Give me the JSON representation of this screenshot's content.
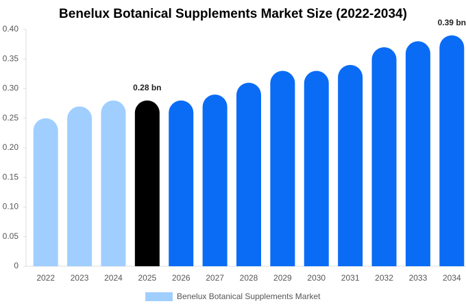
{
  "chart_data": {
    "type": "bar",
    "title": "Benelux Botanical Supplements Market Size (2022-2034)",
    "categories": [
      "2022",
      "2023",
      "2024",
      "2025",
      "2026",
      "2027",
      "2028",
      "2029",
      "2030",
      "2031",
      "2032",
      "2033",
      "2034"
    ],
    "series": [
      {
        "name": "Benelux Botanical Supplements Market",
        "color": "#a0cfff",
        "colors": [
          "#a0cfff",
          "#a0cfff",
          "#a0cfff",
          "#000000",
          "#0a6cf5",
          "#0a6cf5",
          "#0a6cf5",
          "#0a6cf5",
          "#0a6cf5",
          "#0a6cf5",
          "#0a6cf5",
          "#0a6cf5",
          "#0a6cf5"
        ],
        "values": [
          0.25,
          0.27,
          0.28,
          0.28,
          0.28,
          0.29,
          0.31,
          0.33,
          0.33,
          0.34,
          0.37,
          0.38,
          0.39
        ],
        "value_labels": [
          null,
          null,
          null,
          "0.28 bn",
          null,
          null,
          null,
          null,
          null,
          null,
          null,
          null,
          "0.39 bn"
        ]
      }
    ],
    "ylim": [
      0,
      0.4
    ],
    "yticks": [
      0,
      0.05,
      {
        "value": 0.1,
        "label": "0.10"
      },
      0.15,
      {
        "value": 0.2,
        "label": "0.20"
      },
      0.25,
      {
        "value": 0.3,
        "label": "0.30"
      },
      0.35,
      {
        "value": 0.4,
        "label": "0.40"
      }
    ],
    "grid": false
  }
}
